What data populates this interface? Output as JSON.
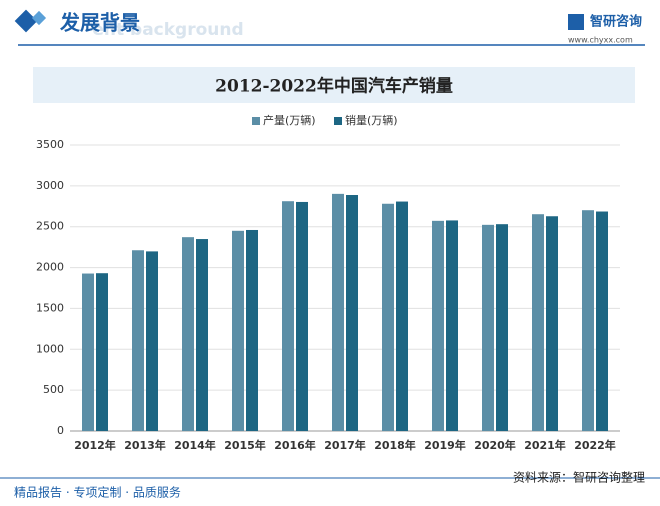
{
  "header": {
    "title": "发展背景",
    "subtitle": "ent background"
  },
  "logo": {
    "name": "智研咨询",
    "url": "www.chyxx.com"
  },
  "chart_data": {
    "type": "bar",
    "title": "2012-2022年中国汽车产销量",
    "categories": [
      "2012年",
      "2013年",
      "2014年",
      "2015年",
      "2016年",
      "2017年",
      "2018年",
      "2019年",
      "2020年",
      "2021年",
      "2022年"
    ],
    "series": [
      {
        "name": "产量(万辆)",
        "color": "#5b8ea6",
        "values": [
          1927,
          2212,
          2372,
          2450,
          2812,
          2902,
          2781,
          2572,
          2523,
          2653,
          2702
        ]
      },
      {
        "name": "销量(万辆)",
        "color": "#1d6683",
        "values": [
          1931,
          2198,
          2349,
          2460,
          2803,
          2888,
          2808,
          2577,
          2531,
          2628,
          2686
        ]
      }
    ],
    "ylim": [
      0,
      3500
    ],
    "yticks": [
      0,
      500,
      1000,
      1500,
      2000,
      2500,
      3000,
      3500
    ],
    "grid": true,
    "legend": "top"
  },
  "footer": {
    "tagline": "精品报告 · 专项定制 · 品质服务",
    "source": "资料来源：智研咨询整理"
  }
}
